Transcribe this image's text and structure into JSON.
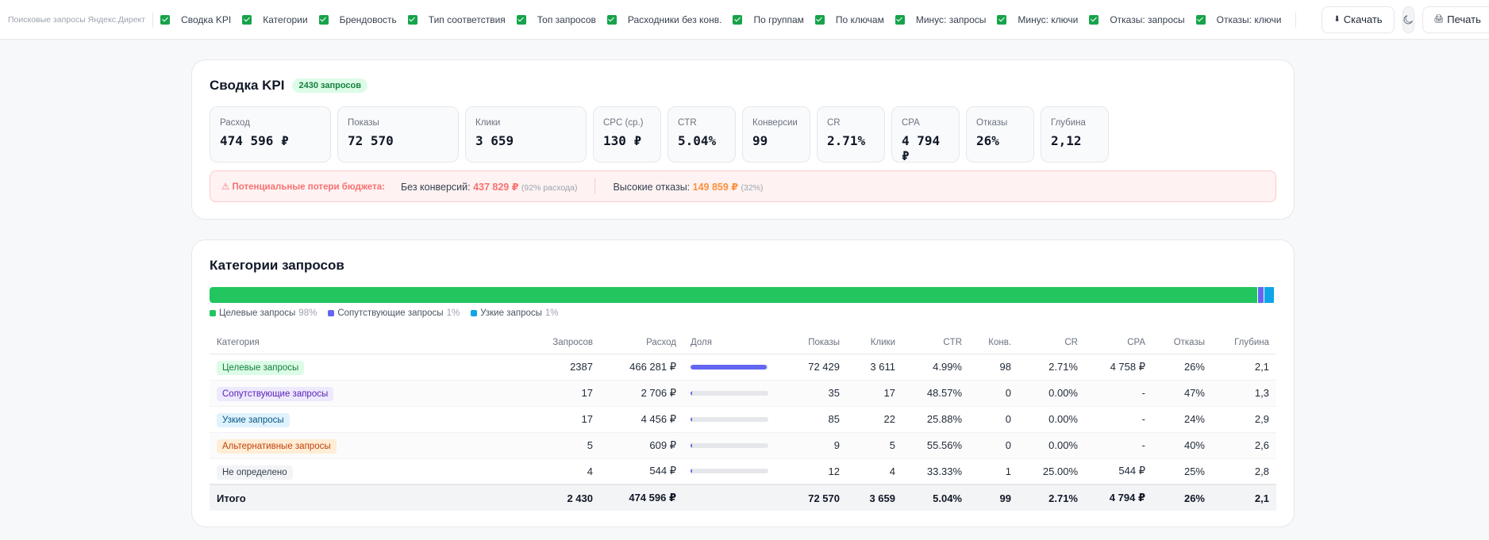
{
  "topbar": {
    "brand": "Поисковые запросы Яндекс.Директ",
    "toggles": [
      {
        "label": "Сводка KPI"
      },
      {
        "label": "Категории"
      },
      {
        "label": "Брендовость"
      },
      {
        "label": "Тип соответствия"
      },
      {
        "label": "Топ запросов"
      },
      {
        "label": "Расходники без конв."
      },
      {
        "label": "По группам"
      },
      {
        "label": "По ключам"
      },
      {
        "label": "Минус: запросы"
      },
      {
        "label": "Минус: ключи"
      },
      {
        "label": "Отказы: запросы"
      },
      {
        "label": "Отказы: ключи"
      }
    ],
    "download_label": "Скачать",
    "print_label": "Печать"
  },
  "kpi": {
    "title": "Сводка KPI",
    "badge": "2430 запросов",
    "cards": [
      {
        "label": "Расход",
        "value": "474 596 ₽"
      },
      {
        "label": "Показы",
        "value": "72 570"
      },
      {
        "label": "Клики",
        "value": "3 659"
      },
      {
        "label": "CPC (ср.)",
        "value": "130 ₽"
      },
      {
        "label": "CTR",
        "value": "5.04%"
      },
      {
        "label": "Конверсии",
        "value": "99"
      },
      {
        "label": "CR",
        "value": "2.71%"
      },
      {
        "label": "CPA",
        "value": "4 794 ₽"
      },
      {
        "label": "Отказы",
        "value": "26%"
      },
      {
        "label": "Глубина",
        "value": "2,12"
      }
    ],
    "loss": {
      "title": "⚠ Потенциальные потери бюджета:",
      "no_conv_label": "Без конверсий:",
      "no_conv_value": "437 829 ₽",
      "no_conv_pct": "(92% расхода)",
      "bounce_label": "Высокие отказы:",
      "bounce_value": "149 859 ₽",
      "bounce_pct": "(32%)"
    }
  },
  "categories": {
    "title": "Категории запросов",
    "bar": [
      {
        "name": "Целевые запросы",
        "share": 0.9825,
        "color": "#22c55e"
      },
      {
        "name": "Сопутствующие запросы",
        "share": 0.0057,
        "color": "#6366f1"
      },
      {
        "name": "Узкие запросы",
        "share": 0.0094,
        "color": "#0ea5e9"
      }
    ],
    "legend": [
      {
        "name": "Целевые запросы",
        "pct": "98%",
        "color": "#22c55e"
      },
      {
        "name": "Сопутствующие запросы",
        "pct": "1%",
        "color": "#6366f1"
      },
      {
        "name": "Узкие запросы",
        "pct": "1%",
        "color": "#0ea5e9"
      }
    ],
    "columns": [
      "Категория",
      "Запросов",
      "Расход",
      "Доля",
      "Показы",
      "Клики",
      "CTR",
      "Конв.",
      "CR",
      "CPA",
      "Отказы",
      "Глубина"
    ],
    "rows": [
      {
        "cat": "Целевые запросы",
        "tag_bg": "#dcfce7",
        "tag_fg": "#15803d",
        "queries": "2387",
        "spend": "466 281 ₽",
        "share": 0.9825,
        "impr": "72 429",
        "clicks": "3 611",
        "ctr": "4.99%",
        "conv": "98",
        "cr": "2.71%",
        "cpa": "4 758 ₽",
        "bounce": "26%",
        "depth": "2,1"
      },
      {
        "cat": "Сопутствующие запросы",
        "tag_bg": "#ede9fe",
        "tag_fg": "#5b21b6",
        "queries": "17",
        "spend": "2 706 ₽",
        "share": 0.0057,
        "impr": "35",
        "clicks": "17",
        "ctr": "48.57%",
        "conv": "0",
        "cr": "0.00%",
        "cpa": "-",
        "bounce": "47%",
        "depth": "1,3"
      },
      {
        "cat": "Узкие запросы",
        "tag_bg": "#e0f2fe",
        "tag_fg": "#075985",
        "queries": "17",
        "spend": "4 456 ₽",
        "share": 0.0094,
        "impr": "85",
        "clicks": "22",
        "ctr": "25.88%",
        "conv": "0",
        "cr": "0.00%",
        "cpa": "-",
        "bounce": "24%",
        "depth": "2,9"
      },
      {
        "cat": "Альтернативные запросы",
        "tag_bg": "#ffedd5",
        "tag_fg": "#c2410c",
        "queries": "5",
        "spend": "609 ₽",
        "share": 0.0013,
        "impr": "9",
        "clicks": "5",
        "ctr": "55.56%",
        "conv": "0",
        "cr": "0.00%",
        "cpa": "-",
        "bounce": "40%",
        "depth": "2,6"
      },
      {
        "cat": "Не определено",
        "tag_bg": "#f3f4f6",
        "tag_fg": "#374151",
        "queries": "4",
        "spend": "544 ₽",
        "share": 0.0011,
        "impr": "12",
        "clicks": "4",
        "ctr": "33.33%",
        "conv": "1",
        "cr": "25.00%",
        "cpa": "544 ₽",
        "bounce": "25%",
        "depth": "2,8"
      }
    ],
    "total": {
      "cat": "Итого",
      "queries": "2 430",
      "spend": "474 596 ₽",
      "impr": "72 570",
      "clicks": "3 659",
      "ctr": "5.04%",
      "conv": "99",
      "cr": "2.71%",
      "cpa": "4 794 ₽",
      "bounce": "26%",
      "depth": "2,1"
    }
  }
}
